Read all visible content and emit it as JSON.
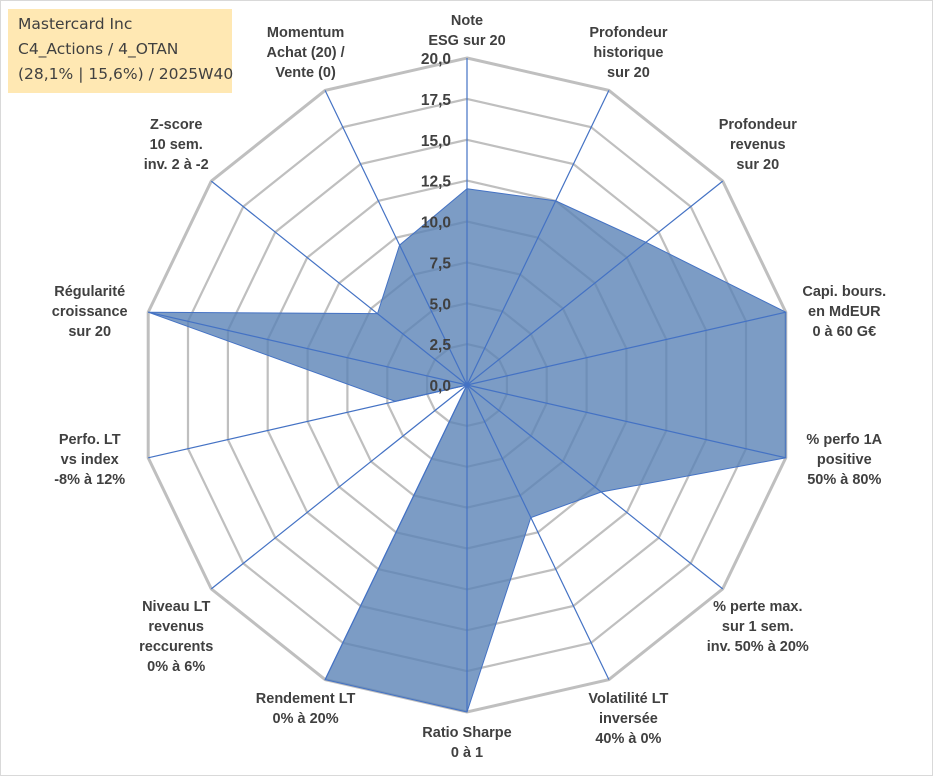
{
  "title": {
    "line1": "Mastercard Inc",
    "line2": "C4_Actions / 4_OTAN",
    "line3": "(28,1% | 15,6%) / 2025W40"
  },
  "colors": {
    "fill": "#5b83b7",
    "stroke": "#4472c4",
    "grid": "#bfbfbf",
    "text": "#404040",
    "title_bg": "#ffe8b3"
  },
  "chart_data": {
    "type": "radar",
    "rmin": 0,
    "rmax": 20,
    "tick_step": 2.5,
    "tick_labels": [
      "0,0",
      "2,5",
      "5,0",
      "7,5",
      "10,0",
      "12,5",
      "15,0",
      "17,5",
      "20,0"
    ],
    "axes": [
      {
        "label": [
          "Note",
          "ESG sur 20"
        ],
        "value": 12
      },
      {
        "label": [
          "Profondeur",
          "historique",
          "sur 20"
        ],
        "value": 12.5
      },
      {
        "label": [
          "Profondeur",
          "revenus",
          "sur 20"
        ],
        "value": 14
      },
      {
        "label": [
          "Capi. bours.",
          "en MdEUR",
          "0 à 60 G€"
        ],
        "value": 20
      },
      {
        "label": [
          "% perfo 1A",
          "positive",
          "50% à 80%"
        ],
        "value": 20
      },
      {
        "label": [
          "% perte max.",
          "sur 1 sem.",
          "inv. 50% à 20%"
        ],
        "value": 10.5
      },
      {
        "label": [
          "Volatilité LT",
          "inversée",
          "40% à 0%"
        ],
        "value": 9
      },
      {
        "label": [
          "Ratio Sharpe",
          "0 à 1"
        ],
        "value": 20
      },
      {
        "label": [
          "Rendement LT",
          "0% à 20%"
        ],
        "value": 20
      },
      {
        "label": [
          "Niveau LT",
          "revenus",
          "reccurents",
          "0% à 6%"
        ],
        "value": 0
      },
      {
        "label": [
          "Perfo. LT",
          "vs index",
          "-8% à 12%"
        ],
        "value": 4.5
      },
      {
        "label": [
          "Régularité",
          "croissance",
          "sur 20"
        ],
        "value": 20
      },
      {
        "label": [
          "Z-score",
          "10 sem.",
          "inv. 2 à -2"
        ],
        "value": 7
      },
      {
        "label": [
          "Momentum",
          "Achat (20) /",
          "Vente (0)"
        ],
        "value": 9.5
      }
    ]
  }
}
